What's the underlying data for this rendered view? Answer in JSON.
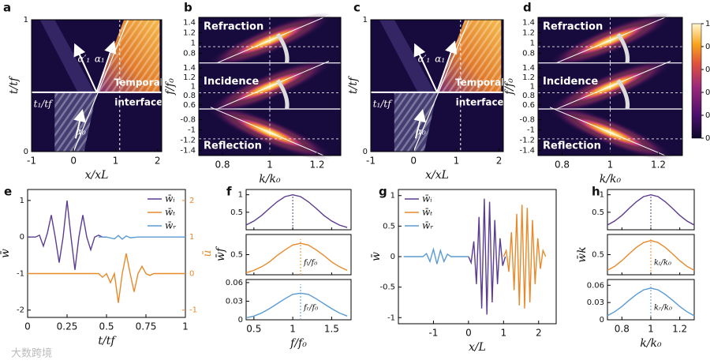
{
  "chart_data": [
    {
      "panel": "a",
      "type": "heatmap",
      "xlabel": "x/xL",
      "ylabel": "t/tf",
      "xlim": [
        -1,
        2.1
      ],
      "xticks": [
        -1,
        0,
        1,
        2
      ],
      "ylim": [
        0,
        1
      ],
      "yticks": [
        0,
        1
      ],
      "annotations": [
        "t₁/tf",
        "α′₁",
        "α₁",
        "α₀",
        "Temporal",
        "interface"
      ]
    },
    {
      "panel": "b",
      "type": "heatmap-stack",
      "xlabel": "k/k₀",
      "ylabel": "f/f₀",
      "xlim": [
        0.7,
        1.3
      ],
      "xticks": [
        0.8,
        1,
        1.2
      ],
      "windows": [
        {
          "label": "Refraction",
          "ylim": [
            0.6,
            1.5
          ],
          "yticks": [
            0.8,
            1,
            1.2,
            1.4
          ]
        },
        {
          "label": "Incidence",
          "ylim": [
            0.5,
            1.5
          ],
          "yticks": [
            0.6,
            0.8,
            1,
            1.2,
            1.4
          ]
        },
        {
          "label": "Reflection",
          "ylim": [
            -1.5,
            -0.6
          ],
          "yticks": [
            -1.4,
            -1.2,
            -1,
            -0.8
          ]
        }
      ]
    },
    {
      "panel": "c",
      "type": "heatmap",
      "xlabel": "x/xL",
      "ylabel": "t/tf",
      "xlim": [
        -1,
        2.1
      ],
      "xticks": [
        -1,
        0,
        1,
        2
      ],
      "ylim": [
        0,
        1
      ],
      "yticks": [
        0,
        1
      ],
      "annotations": [
        "t₁/tf",
        "α′₁",
        "α₁",
        "α₀",
        "Temporal",
        "interface"
      ]
    },
    {
      "panel": "d",
      "type": "heatmap-stack",
      "xlabel": "k/k₀",
      "ylabel": "f/f₀",
      "xlim": [
        0.7,
        1.3
      ],
      "xticks": [
        0.8,
        1,
        1.2
      ],
      "windows": [
        {
          "label": "Refraction",
          "ylim": [
            0.6,
            1.5
          ],
          "yticks": [
            0.8,
            1,
            1.2,
            1.4
          ]
        },
        {
          "label": "Incidence",
          "ylim": [
            0.5,
            1.5
          ],
          "yticks": [
            0.6,
            0.8,
            1,
            1.2,
            1.4
          ]
        },
        {
          "label": "Reflection",
          "ylim": [
            -1.5,
            -0.6
          ],
          "yticks": [
            -1.4,
            -1.2,
            -1,
            -0.8
          ]
        }
      ],
      "colorbar": {
        "clim": [
          0,
          1
        ],
        "ticks": [
          0,
          0.2,
          0.4,
          0.6,
          0.8,
          1
        ]
      }
    },
    {
      "panel": "e",
      "type": "line",
      "xlabel": "t/tf",
      "ylabel": "w̄",
      "y2label": "ū",
      "xlim": [
        0,
        1
      ],
      "xticks": [
        0,
        0.25,
        0.5,
        0.75,
        1
      ],
      "ylim": [
        -2.2,
        1.3
      ],
      "yticks": [
        -2,
        -1,
        0,
        1
      ],
      "y2lim": [
        -1.2,
        2.3
      ],
      "y2ticks": [
        -1,
        0,
        1,
        2
      ],
      "legend": "upper right",
      "series": [
        {
          "name": "w̄ᵢ",
          "color": "#5b3c91",
          "x": [
            0,
            0.025,
            0.05,
            0.075,
            0.1,
            0.125,
            0.15,
            0.175,
            0.2,
            0.225,
            0.25,
            0.275,
            0.3,
            0.325,
            0.35,
            0.375,
            0.4,
            0.425,
            0.45,
            0.475,
            0.5
          ],
          "values": [
            0,
            0,
            0,
            0.05,
            -0.25,
            0.1,
            0.6,
            0,
            -0.7,
            0,
            1.0,
            0,
            -0.9,
            0,
            0.6,
            0,
            -0.35,
            0,
            0.05,
            0,
            0
          ]
        },
        {
          "name": "w̄ₜ",
          "color": "#e8892b",
          "axis": "y2",
          "x": [
            0,
            0.45,
            0.475,
            0.5,
            0.525,
            0.55,
            0.575,
            0.6,
            0.625,
            0.65,
            0.675,
            0.7,
            0.725,
            0.75,
            0.775,
            0.8,
            1
          ],
          "values": [
            0,
            0,
            -0.1,
            0,
            -0.25,
            0,
            -0.8,
            0,
            0.55,
            0,
            -0.5,
            0,
            0.2,
            0,
            -0.05,
            0,
            0
          ]
        },
        {
          "name": "w̄ᵣ",
          "color": "#5a9bd4",
          "x": [
            0.45,
            0.5,
            0.55,
            0.575,
            0.6,
            0.625,
            0.65,
            0.7,
            0.8,
            0.9,
            1
          ],
          "values": [
            0,
            0,
            -0.05,
            0.04,
            -0.06,
            0.03,
            -0.02,
            0,
            0,
            0,
            0
          ]
        }
      ]
    },
    {
      "panel": "f",
      "type": "line-stack",
      "xlabel": "f/f₀",
      "ylabel": "w̄f",
      "xlim": [
        0.4,
        1.75
      ],
      "xticks": [
        0.5,
        1,
        1.5
      ],
      "panels": [
        {
          "color": "#5b3c91",
          "ylim": [
            0,
            1.15
          ],
          "yticks": [
            0.5,
            1
          ],
          "vline": 1,
          "x": [
            0.4,
            0.5,
            0.6,
            0.7,
            0.8,
            0.9,
            1.0,
            1.1,
            1.2,
            1.3,
            1.4,
            1.5,
            1.6,
            1.7
          ],
          "values": [
            0.135,
            0.25,
            0.41,
            0.61,
            0.8,
            0.946,
            1,
            0.946,
            0.8,
            0.61,
            0.41,
            0.25,
            0.135,
            0.066
          ]
        },
        {
          "color": "#e8892b",
          "ylim": [
            0,
            1.0
          ],
          "yticks": [
            0.5
          ],
          "vline": 1.1,
          "label": "fₜ/f₀",
          "x": [
            0.4,
            0.5,
            0.6,
            0.7,
            0.8,
            0.9,
            1.0,
            1.1,
            1.2,
            1.3,
            1.4,
            1.5,
            1.6,
            1.7
          ],
          "values": [
            0.05,
            0.11,
            0.2,
            0.32,
            0.48,
            0.62,
            0.74,
            0.78,
            0.74,
            0.62,
            0.48,
            0.32,
            0.2,
            0.11
          ]
        },
        {
          "color": "#5a9bd4",
          "ylim": [
            0,
            0.065
          ],
          "yticks": [
            0,
            0.03,
            0.06
          ],
          "vline": 1.1,
          "label": "fᵣ/f₀",
          "x": [
            0.4,
            0.5,
            0.6,
            0.7,
            0.8,
            0.9,
            1.0,
            1.1,
            1.2,
            1.3,
            1.4,
            1.5,
            1.6,
            1.7
          ],
          "values": [
            0.003,
            0.006,
            0.011,
            0.018,
            0.026,
            0.034,
            0.041,
            0.043,
            0.041,
            0.034,
            0.026,
            0.018,
            0.011,
            0.006
          ]
        }
      ]
    },
    {
      "panel": "g",
      "type": "line",
      "xlabel": "x/L",
      "ylabel": "w̄",
      "xlim": [
        -2,
        2.5
      ],
      "xticks": [
        -1,
        0,
        1,
        2
      ],
      "ylim": [
        -1.1,
        1.1
      ],
      "yticks": [
        -1,
        -0.5,
        0,
        0.5,
        1
      ],
      "legend": "upper left",
      "series": [
        {
          "name": "w̄ᵢ",
          "color": "#5b3c91",
          "x": [
            0,
            0.075,
            0.15,
            0.225,
            0.3,
            0.375,
            0.45,
            0.525,
            0.6,
            0.675,
            0.75,
            0.825,
            0.9,
            0.975,
            1.05
          ],
          "values": [
            0,
            -0.1,
            0.25,
            -0.45,
            0.65,
            -0.85,
            0.95,
            -0.95,
            0.9,
            -0.75,
            0.6,
            -0.45,
            0.3,
            -0.15,
            0
          ]
        },
        {
          "name": "w̄ₜ",
          "color": "#e8892b",
          "x": [
            1.0,
            1.075,
            1.15,
            1.225,
            1.3,
            1.375,
            1.45,
            1.525,
            1.6,
            1.675,
            1.75,
            1.825,
            1.9,
            1.975,
            2.05,
            2.125,
            2.2
          ],
          "values": [
            0,
            0.1,
            -0.25,
            0.4,
            -0.55,
            0.7,
            -0.8,
            0.85,
            -0.85,
            0.8,
            -0.75,
            0.6,
            -0.45,
            0.3,
            -0.2,
            0.1,
            0
          ]
        },
        {
          "name": "w̄ᵣ",
          "color": "#5a9bd4",
          "x": [
            -1.85,
            -1.3,
            -1.2,
            -1.1,
            -1.0,
            -0.9,
            -0.8,
            -0.7,
            -0.6,
            -0.5,
            0
          ],
          "values": [
            0,
            0,
            0.05,
            -0.08,
            0.12,
            -0.12,
            0.1,
            -0.08,
            0.04,
            0,
            0
          ]
        }
      ]
    },
    {
      "panel": "h",
      "type": "line-stack",
      "xlabel": "k/k₀",
      "ylabel": "w̄k",
      "xlim": [
        0.7,
        1.3
      ],
      "xticks": [
        0.8,
        1,
        1.2
      ],
      "panels": [
        {
          "color": "#5b3c91",
          "ylim": [
            0,
            1.15
          ],
          "yticks": [
            0.5,
            1
          ],
          "vline": 1,
          "x": [
            0.7,
            0.75,
            0.8,
            0.85,
            0.9,
            0.95,
            1.0,
            1.05,
            1.1,
            1.15,
            1.2,
            1.25,
            1.3
          ],
          "values": [
            0.135,
            0.25,
            0.41,
            0.61,
            0.8,
            0.946,
            1,
            0.946,
            0.8,
            0.61,
            0.41,
            0.25,
            0.135
          ]
        },
        {
          "color": "#e8892b",
          "ylim": [
            0,
            1.0
          ],
          "yticks": [
            0.5
          ],
          "vline": 1,
          "label": "kₜ/k₀",
          "x": [
            0.7,
            0.75,
            0.8,
            0.85,
            0.9,
            0.95,
            1.0,
            1.05,
            1.1,
            1.15,
            1.2,
            1.25,
            1.3
          ],
          "values": [
            0.11,
            0.21,
            0.35,
            0.52,
            0.68,
            0.8,
            0.85,
            0.8,
            0.68,
            0.52,
            0.35,
            0.21,
            0.11
          ]
        },
        {
          "color": "#5a9bd4",
          "ylim": [
            0,
            0.07
          ],
          "yticks": [
            0,
            0.03,
            0.06
          ],
          "vline": 1,
          "label": "kᵣ/k₀",
          "x": [
            0.7,
            0.75,
            0.8,
            0.85,
            0.9,
            0.95,
            1.0,
            1.05,
            1.1,
            1.15,
            1.2,
            1.25,
            1.3
          ],
          "values": [
            0.007,
            0.014,
            0.023,
            0.034,
            0.044,
            0.052,
            0.055,
            0.052,
            0.044,
            0.034,
            0.023,
            0.014,
            0.007
          ]
        }
      ]
    }
  ],
  "watermark": "大数跨境"
}
